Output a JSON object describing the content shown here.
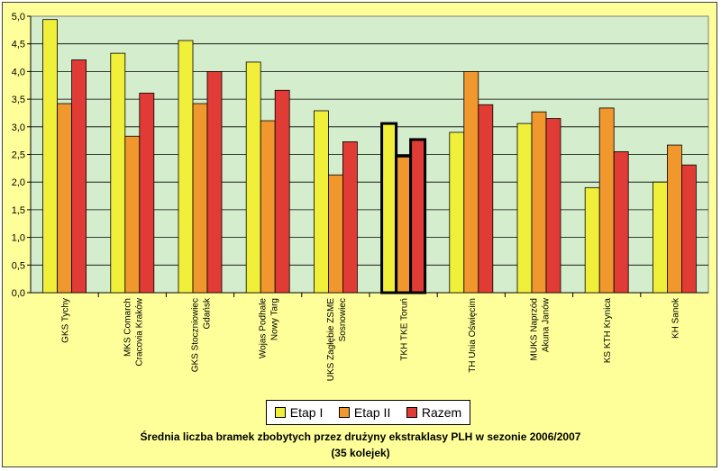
{
  "chart_data": {
    "type": "bar",
    "title": "Średnia liczba bramek zbobytych przez drużyny ekstraklasy PLH w sezonie 2006/2007",
    "subtitle": "(35 kolejek)",
    "xlabel": "",
    "ylabel": "",
    "ylim": [
      0,
      5
    ],
    "yticks": [
      "0,0",
      "0,5",
      "1,0",
      "1,5",
      "2,0",
      "2,5",
      "3,0",
      "3,5",
      "4,0",
      "4,5",
      "5,0"
    ],
    "grid": true,
    "legend_position": "bottom-center",
    "plot_background": "#d4edcc",
    "frame_background": "#ffff99",
    "highlight_category": "TKH TKE Toruń",
    "categories": [
      [
        "GKS Tychy"
      ],
      [
        "MKS Comarch",
        "Cracovia Kraków"
      ],
      [
        "GKS Stoczniowiec",
        "Gdańsk"
      ],
      [
        "Wojas Podhale",
        "Nowy Targ"
      ],
      [
        "UKS Zagłębie ZSME",
        "Sosnowiec"
      ],
      [
        "TKH TKE Toruń"
      ],
      [
        "TH Unia Oświęcim"
      ],
      [
        "MUKS Naprzód",
        "Akuna Janów"
      ],
      [
        "KS KTH Krynica"
      ],
      [
        "KH Sanok"
      ]
    ],
    "series": [
      {
        "name": "Etap I",
        "color": "#f0f03a",
        "values": [
          4.94,
          4.33,
          4.56,
          4.17,
          3.29,
          3.06,
          2.9,
          3.06,
          1.9,
          2.0
        ]
      },
      {
        "name": "Etap II",
        "color": "#f0972e",
        "values": [
          3.42,
          2.83,
          3.42,
          3.11,
          2.13,
          2.47,
          4.0,
          3.27,
          3.34,
          2.67
        ]
      },
      {
        "name": "Razem",
        "color": "#e03b35",
        "values": [
          4.21,
          3.61,
          4.0,
          3.66,
          2.73,
          2.77,
          3.4,
          3.15,
          2.55,
          2.31
        ]
      }
    ]
  }
}
